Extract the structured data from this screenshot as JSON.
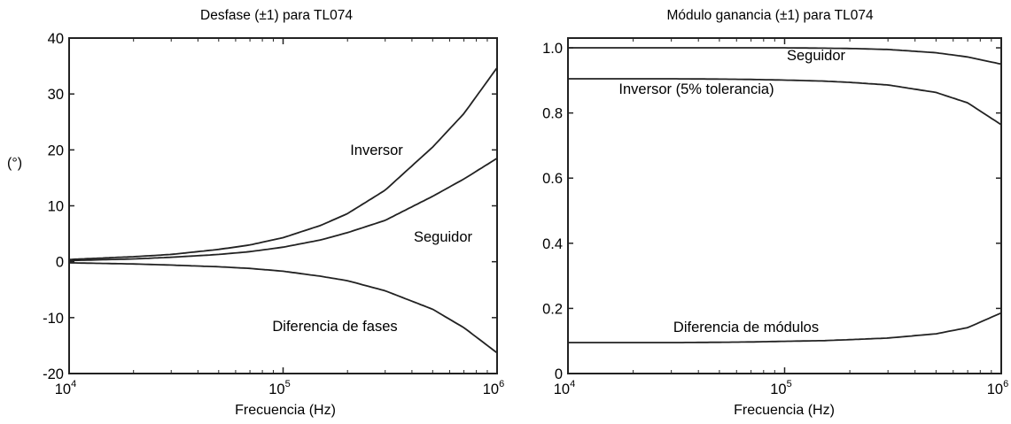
{
  "chart_data": [
    {
      "type": "line",
      "title": "Desfase (±1) para TL074",
      "xlabel": "Frecuencia (Hz)",
      "ylabel": "(°)",
      "xscale": "log",
      "xlim": [
        10000,
        1000000
      ],
      "ylim": [
        -20,
        40
      ],
      "yticks": [
        "40",
        "30",
        "20",
        "10",
        "0",
        "-10",
        "-20"
      ],
      "xticks": [
        {
          "base": "10",
          "exp": "4"
        },
        {
          "base": "10",
          "exp": "5"
        },
        {
          "base": "10",
          "exp": "6"
        }
      ],
      "grid": false,
      "x": [
        10000,
        20000,
        30000,
        50000,
        70000,
        100000,
        150000,
        200000,
        300000,
        500000,
        700000,
        1000000
      ],
      "series": [
        {
          "name": "Inversor",
          "values": [
            0.4,
            0.9,
            1.3,
            2.2,
            3.0,
            4.3,
            6.5,
            8.6,
            12.8,
            20.5,
            26.5,
            34.7
          ]
        },
        {
          "name": "Seguidor",
          "values": [
            0.2,
            0.5,
            0.8,
            1.3,
            1.8,
            2.6,
            3.9,
            5.2,
            7.4,
            11.7,
            14.8,
            18.5
          ]
        },
        {
          "name": "Diferencia de fases",
          "values": [
            -0.2,
            -0.4,
            -0.6,
            -0.9,
            -1.2,
            -1.7,
            -2.6,
            -3.4,
            -5.2,
            -8.5,
            -11.8,
            -16.3
          ]
        }
      ],
      "annotations": [
        "Inversor",
        "Seguidor",
        "Diferencia de fases"
      ]
    },
    {
      "type": "line",
      "title": "Módulo ganancia (±1) para TL074",
      "xlabel": "Frecuencia (Hz)",
      "ylabel": "",
      "xscale": "log",
      "xlim": [
        10000,
        1000000
      ],
      "ylim": [
        0,
        1.03
      ],
      "yticks": [
        "1.0",
        "0.8",
        "0.6",
        "0.4",
        "0.2",
        "0"
      ],
      "xticks": [
        {
          "base": "10",
          "exp": "4"
        },
        {
          "base": "10",
          "exp": "5"
        },
        {
          "base": "10",
          "exp": "6"
        }
      ],
      "grid": false,
      "x": [
        10000,
        20000,
        30000,
        50000,
        70000,
        100000,
        150000,
        200000,
        300000,
        500000,
        700000,
        1000000
      ],
      "series": [
        {
          "name": "Seguidor",
          "values": [
            1.0,
            1.0,
            1.0,
            1.0,
            1.0,
            1.0,
            0.999,
            0.998,
            0.995,
            0.985,
            0.972,
            0.95
          ]
        },
        {
          "name": "Inversor (5% tolerancia)",
          "values": [
            0.905,
            0.905,
            0.905,
            0.904,
            0.903,
            0.901,
            0.898,
            0.894,
            0.886,
            0.863,
            0.831,
            0.764
          ]
        },
        {
          "name": "Diferencia de módulos",
          "values": [
            0.095,
            0.095,
            0.095,
            0.096,
            0.097,
            0.099,
            0.101,
            0.104,
            0.109,
            0.122,
            0.141,
            0.186
          ]
        }
      ],
      "annotations": [
        "Seguidor",
        "Inversor (5% tolerancia)",
        "Diferencia de módulos"
      ]
    }
  ]
}
